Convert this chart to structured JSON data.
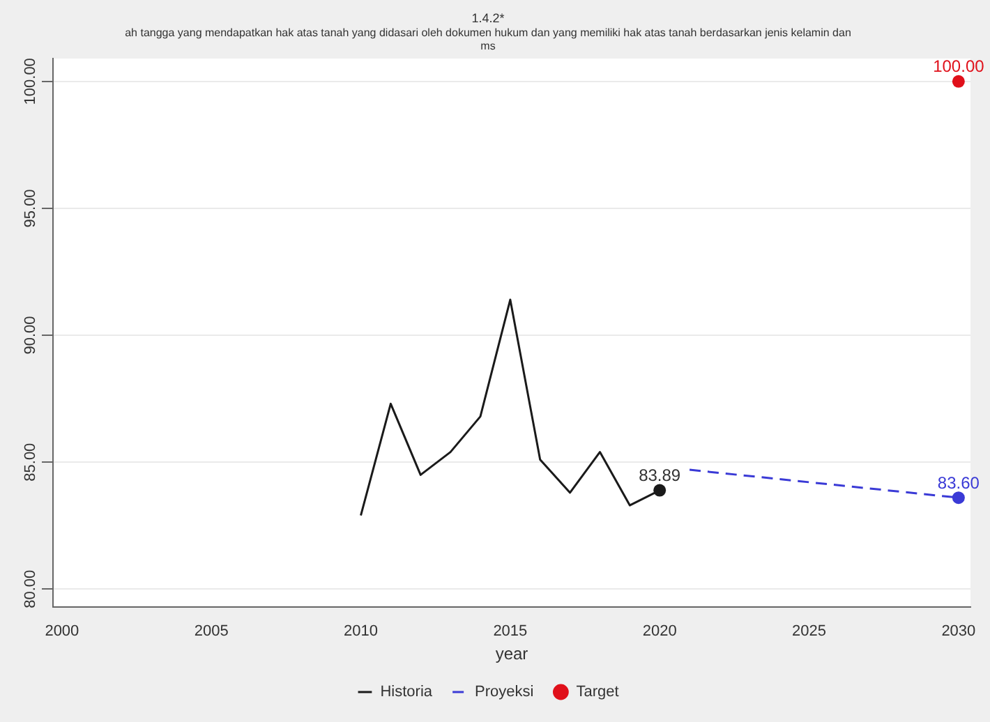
{
  "chart_data": {
    "type": "line",
    "title": "1.4.2*",
    "subtitle": "ah tangga yang mendapatkan hak atas tanah yang didasari oleh dokumen hukum dan yang memiliki hak atas tanah berdasarkan jenis kelamin dan",
    "annotations": [
      "ms"
    ],
    "xlabel": "year",
    "series": [
      {
        "name": "Historia",
        "color": "#1a1a1a",
        "line_style": "solid",
        "x": [
          2010,
          2011,
          2012,
          2013,
          2014,
          2015,
          2016,
          2017,
          2018,
          2019,
          2020
        ],
        "values": [
          82.9,
          87.3,
          84.5,
          85.4,
          86.8,
          91.4,
          85.1,
          83.8,
          85.4,
          83.3,
          83.89
        ]
      },
      {
        "name": "Proyeksi",
        "color": "#3a3ad6",
        "line_style": "dashed",
        "x": [
          2021,
          2030
        ],
        "values": [
          84.7,
          83.6
        ]
      },
      {
        "name": "Target",
        "color": "#e0101a",
        "type": "scatter",
        "marker": "circle",
        "x": [
          2030
        ],
        "values": [
          100
        ],
        "value_labels": [
          "100.00"
        ]
      },
      {
        "color": "#1a1a1a",
        "type": "scatter",
        "marker": "circle",
        "x": [
          2020
        ],
        "values": [
          83.89
        ],
        "value_labels": [
          "83.89"
        ]
      },
      {
        "color": "#3a3ad6",
        "type": "scatter",
        "marker": "circle",
        "x": [
          2030
        ],
        "values": [
          83.6
        ],
        "value_labels": [
          "83.60"
        ]
      }
    ],
    "xlim": [
      1999.7,
      2030.4
    ],
    "xticks": [
      2000,
      2005,
      2010,
      2015,
      2020,
      2025,
      2030
    ],
    "ylim": [
      79.3,
      100.9
    ],
    "yticks": [
      {
        "value": 80,
        "label": "80.00"
      },
      {
        "value": 85,
        "label": "85.00"
      },
      {
        "value": 90,
        "label": "90.00"
      },
      {
        "value": 95,
        "label": "95.00"
      },
      {
        "value": 100,
        "label": "100.00"
      }
    ],
    "grid": "y",
    "legend": "bottom"
  }
}
